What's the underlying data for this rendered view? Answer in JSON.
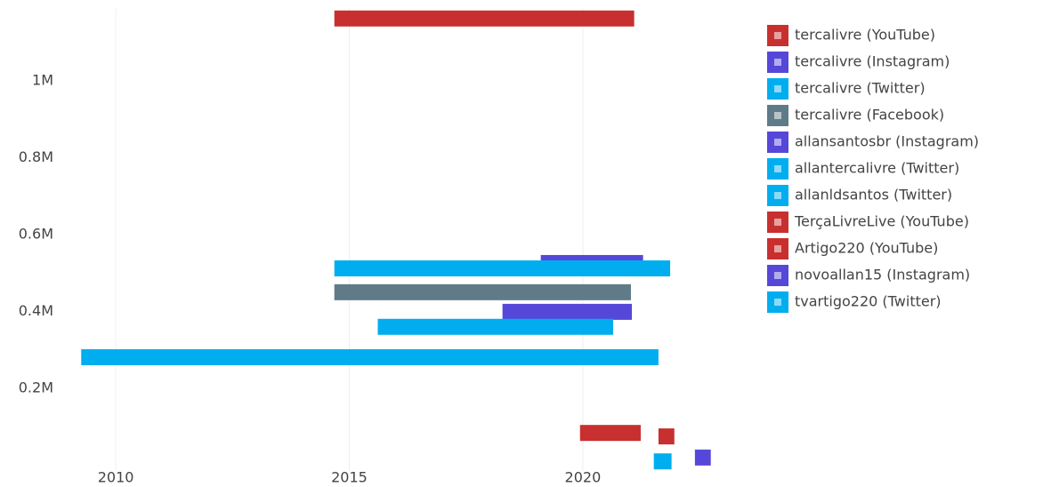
{
  "chart_data": {
    "type": "timeline-bar",
    "xlim": [
      2008.76,
      2022.86
    ],
    "xticks": [
      2010,
      2015,
      2020
    ],
    "ylim": [
      -15000,
      1187000
    ],
    "yticks": [
      {
        "value": 200000,
        "label": "0.2M"
      },
      {
        "value": 400000,
        "label": "0.4M"
      },
      {
        "value": 600000,
        "label": "0.6M"
      },
      {
        "value": 800000,
        "label": "0.8M"
      },
      {
        "value": 1000000,
        "label": "1M"
      }
    ],
    "grid": true,
    "legend": "right",
    "series": [
      {
        "name": "tercalivre (YouTube)",
        "color": "#c8302f",
        "start": [
          2014.68
        ],
        "end": [
          2021.1
        ],
        "values": [
          1162000
        ]
      },
      {
        "name": "tercalivre (Instagram)",
        "color": "#5548d9",
        "start": [
          2019.1
        ],
        "end": [
          2021.29
        ],
        "values": [
          526000
        ]
      },
      {
        "name": "tercalivre (Twitter)",
        "color": "#00aeef",
        "start": [
          2014.68
        ],
        "end": [
          2021.87
        ],
        "values": [
          512000
        ]
      },
      {
        "name": "tercalivre (Facebook)",
        "color": "#5f7b87",
        "start": [
          2014.68
        ],
        "end": [
          2021.03
        ],
        "values": [
          450000
        ]
      },
      {
        "name": "allansantosbr (Instagram)",
        "color": "#5548d9",
        "start": [
          2018.28
        ],
        "end": [
          2021.05
        ],
        "values": [
          399000
        ]
      },
      {
        "name": "allantercalivre (Twitter)",
        "color": "#00aeef",
        "start": [
          2015.61
        ],
        "end": [
          2020.65
        ],
        "values": [
          360000
        ]
      },
      {
        "name": "allanldsantos (Twitter)",
        "color": "#00aeef",
        "start": [
          2009.26
        ],
        "end": [
          2021.62
        ],
        "values": [
          281000
        ]
      },
      {
        "name": "TerçaLivreLive (YouTube)",
        "color": "#c8302f",
        "start": [
          2019.94
        ],
        "end": [
          2021.24
        ],
        "values": [
          84000
        ]
      },
      {
        "name": "Artigo220 (YouTube)",
        "color": "#c8302f",
        "start": [
          2021.62
        ],
        "end": [
          2021.96
        ],
        "values": [
          75000
        ]
      },
      {
        "name": "novoallan15 (Instagram)",
        "color": "#5548d9",
        "start": [
          2022.4
        ],
        "end": [
          2022.74
        ],
        "values": [
          20000
        ]
      },
      {
        "name": "tvartigo220 (Twitter)",
        "color": "#00aeef",
        "start": [
          2021.52
        ],
        "end": [
          2021.9
        ],
        "values": [
          10000
        ]
      }
    ]
  }
}
